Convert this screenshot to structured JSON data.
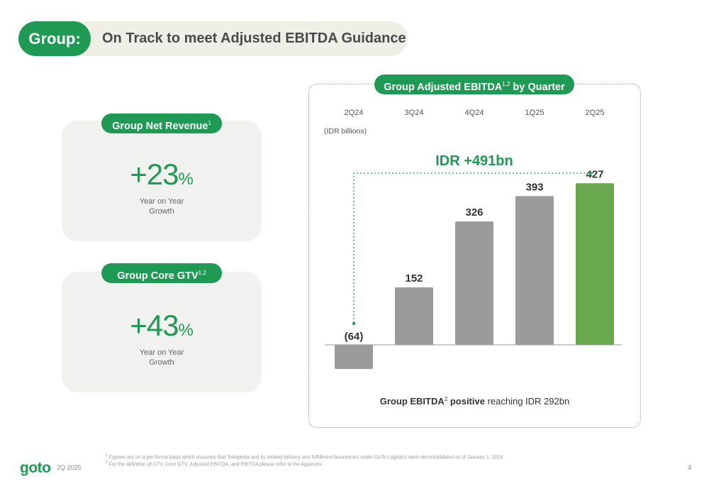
{
  "header": {
    "tag": "Group:",
    "title": "On Track to meet Adjusted EBITDA Guidance"
  },
  "cards": [
    {
      "label": "Group Net Revenue",
      "label_sup": "1",
      "sign": "+",
      "value": "23",
      "unit": "%",
      "sub1": "Year on Year",
      "sub2": "Growth"
    },
    {
      "label": "Group Core GTV",
      "label_sup": "1,2",
      "sign": "+",
      "value": "43",
      "unit": "%",
      "sub1": "Year on Year",
      "sub2": "Growth"
    }
  ],
  "chart_panel": {
    "title": "Group Adjusted EBITDA",
    "title_sup": "1,2",
    "title_suffix": " by Quarter",
    "unit_label": "(IDR billions)",
    "foot_bold1": "Group EBITDA",
    "foot_sup": "2",
    "foot_bold2": " positive",
    "foot_rest": " reaching IDR 292bn"
  },
  "chart_data": {
    "type": "bar",
    "categories": [
      "2Q24",
      "3Q24",
      "4Q24",
      "1Q25",
      "2Q25"
    ],
    "values": [
      -64,
      152,
      326,
      393,
      427
    ],
    "data_labels": [
      "(64)",
      "152",
      "326",
      "393",
      "427"
    ],
    "highlight_index": 4,
    "annotation": "IDR +491bn",
    "colors": {
      "default": "#9b9b9b",
      "highlight": "#6aa84f",
      "annotation": "#1f9a54"
    },
    "title": "Group Adjusted EBITDA by Quarter",
    "ylabel": "(IDR billions)",
    "ylim": [
      -64,
      427
    ],
    "grid": false,
    "legend": "none"
  },
  "footer": {
    "logo": "goto",
    "period": "2Q 2025",
    "notes": [
      {
        "sup": "1",
        "text": "Figures are on a pro forma basis which assumes that Tokopedia and its related delivery and fulfillment businesses under GoTo Logistics were deconsolidated as of January 1, 2024"
      },
      {
        "sup": "2",
        "text": "For the definition of GTV, Core GTV, Adjusted EBITDA, and EBITDA please refer to the Appendix"
      }
    ],
    "page": "4"
  },
  "colors": {
    "brand_green": "#1f9a54",
    "card_bg": "#f1f1ef",
    "title_bg": "#efefe8"
  }
}
